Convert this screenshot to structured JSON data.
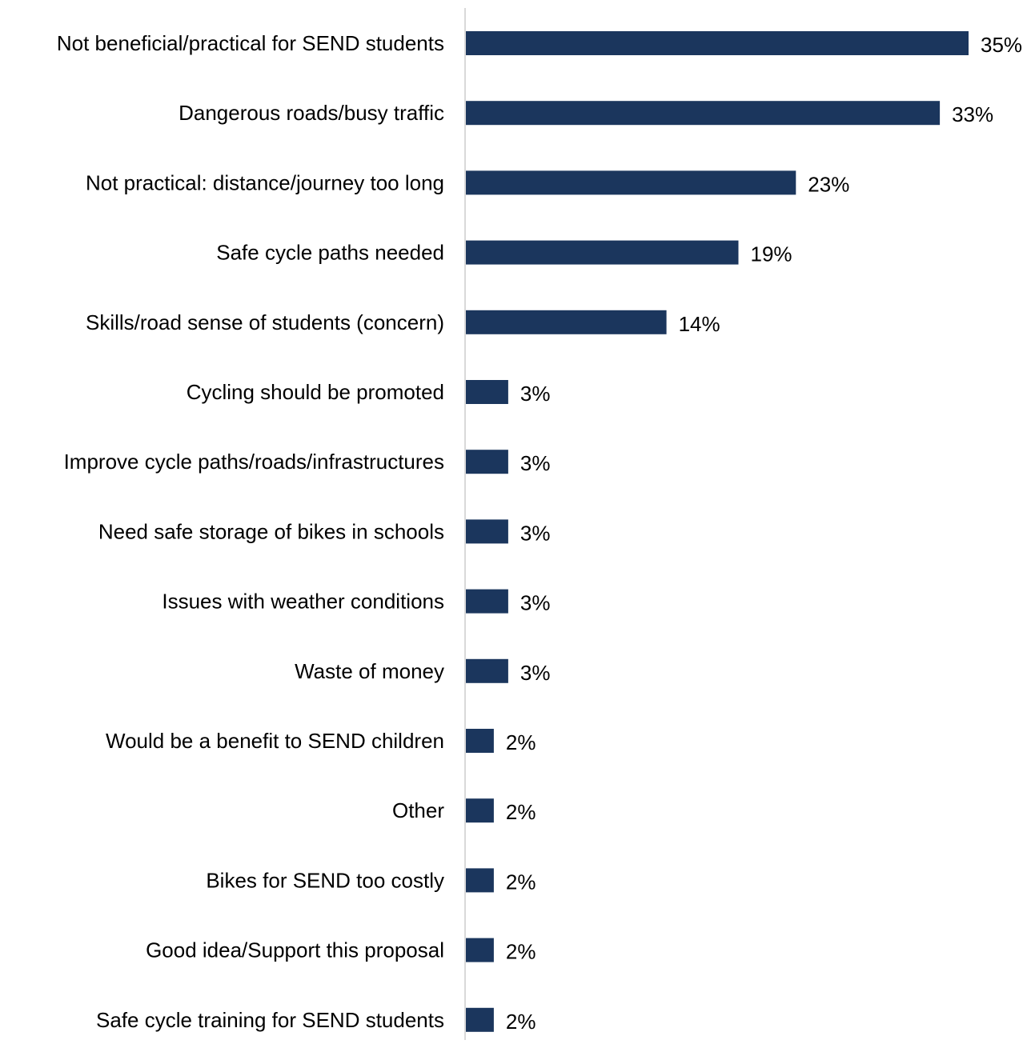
{
  "chart_data": {
    "type": "bar",
    "orientation": "horizontal",
    "title": "",
    "xlabel": "",
    "ylabel": "",
    "categories": [
      "Not beneficial/practical for SEND students",
      "Dangerous roads/busy traffic",
      "Not practical: distance/journey too long",
      "Safe cycle paths needed",
      "Skills/road sense of students (concern)",
      "Cycling should be promoted",
      "Improve cycle paths/roads/infrastructures",
      "Need safe storage of bikes in schools",
      "Issues with weather conditions",
      "Waste of money",
      "Would be a benefit to SEND children",
      "Other",
      "Bikes for SEND too costly",
      "Good idea/Support this proposal",
      "Safe cycle training for SEND students"
    ],
    "values": [
      35,
      33,
      23,
      19,
      14,
      3,
      3,
      3,
      3,
      3,
      2,
      2,
      2,
      2,
      2
    ],
    "value_labels": [
      "35%",
      "33%",
      "23%",
      "19%",
      "14%",
      "3%",
      "3%",
      "3%",
      "3%",
      "3%",
      "2%",
      "2%",
      "2%",
      "2%",
      "2%"
    ],
    "unit": "%",
    "xlim": [
      0,
      35
    ],
    "grid": false,
    "legend": "none",
    "bar_color": "#1b365d",
    "axis_color": "#d9d9d9"
  }
}
